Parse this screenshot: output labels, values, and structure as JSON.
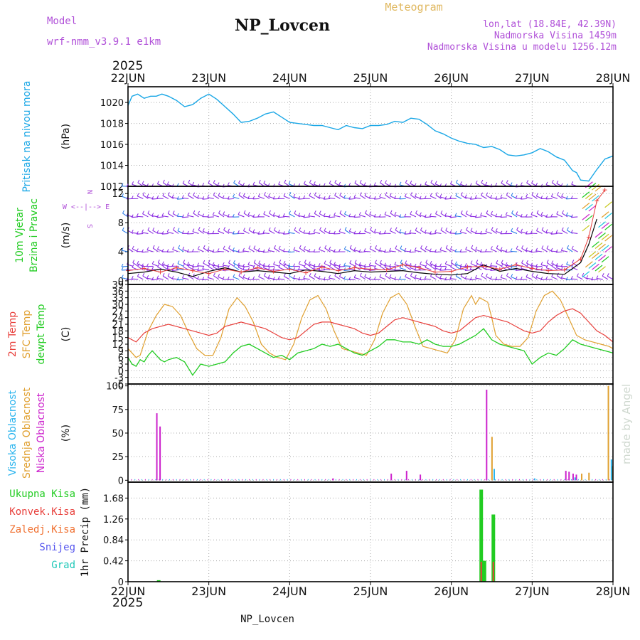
{
  "header": {
    "model_label": "Model",
    "model_name": "wrf-nmm_v3.9.1  e1km",
    "station": "NP_Lovcen",
    "product": "Meteogram",
    "coords": "lon,lat (18.84E, 42.39N)",
    "elevation": "Nadmorska Visina 1459m",
    "model_elevation": "Nadmorska Visina u modelu 1256.12m",
    "year": "2025"
  },
  "footer": {
    "station": "NP_Lovcen",
    "credit": "made by Angel"
  },
  "colors": {
    "pressure": "#1aa7e6",
    "temp2m": "#e8403c",
    "sfc_temp": "#e0a030",
    "dewpt": "#22cc22",
    "cloud_high": "#2ab4ee",
    "cloud_mid": "#e0a030",
    "cloud_low": "#cc22cc",
    "precip_total": "#22cc22",
    "precip_conv": "#e8403c",
    "wind_barb": "#8a2be2",
    "wind_speed": "#000000",
    "wind_gust": "#e8403c"
  },
  "chart_data": {
    "type": "line",
    "x_ticks": [
      "22JUN",
      "23JUN",
      "24JUN",
      "25JUN",
      "26JUN",
      "27JUN",
      "28JUN"
    ],
    "x_unit": "days since 22JUN 2025 00UTC",
    "xlim": [
      0,
      6
    ],
    "panels": [
      {
        "id": "pressure",
        "ylabel_lines": [
          "Pritisak na nivou mora"
        ],
        "unit": "(hPa)",
        "ylim": [
          1012,
          1021.5
        ],
        "yticks": [
          1012,
          1014,
          1016,
          1018,
          1020
        ],
        "series": [
          {
            "x": [
              0,
              0.05,
              0.12,
              0.2,
              0.28,
              0.35,
              0.42,
              0.5,
              0.6,
              0.7,
              0.8,
              0.9,
              1.0,
              1.1,
              1.2,
              1.3,
              1.4,
              1.5,
              1.6,
              1.7,
              1.8,
              1.9,
              2.0,
              2.1,
              2.2,
              2.3,
              2.4,
              2.5,
              2.6,
              2.7,
              2.8,
              2.9,
              3.0,
              3.1,
              3.2,
              3.3,
              3.4,
              3.5,
              3.6,
              3.7,
              3.8,
              3.9,
              4.0,
              4.1,
              4.2,
              4.3,
              4.4,
              4.5,
              4.6,
              4.7,
              4.8,
              4.9,
              5.0,
              5.1,
              5.2,
              5.3,
              5.4,
              5.5,
              5.55,
              5.6,
              5.7,
              5.8,
              5.9,
              6.0
            ],
            "values": [
              1019.7,
              1020.6,
              1020.8,
              1020.4,
              1020.6,
              1020.6,
              1020.8,
              1020.6,
              1020.2,
              1019.6,
              1019.8,
              1020.4,
              1020.8,
              1020.3,
              1019.6,
              1018.9,
              1018.1,
              1018.2,
              1018.5,
              1018.9,
              1019.1,
              1018.6,
              1018.1,
              1018.0,
              1017.9,
              1017.8,
              1017.8,
              1017.6,
              1017.4,
              1017.8,
              1017.6,
              1017.5,
              1017.8,
              1017.8,
              1017.9,
              1018.2,
              1018.1,
              1018.5,
              1018.4,
              1017.9,
              1017.3,
              1017.0,
              1016.6,
              1016.3,
              1016.1,
              1016.0,
              1015.7,
              1015.8,
              1015.5,
              1015.0,
              1014.9,
              1015.0,
              1015.2,
              1015.6,
              1015.3,
              1014.8,
              1014.5,
              1013.5,
              1013.3,
              1012.6,
              1012.5,
              1013.6,
              1014.6,
              1014.9
            ]
          }
        ]
      },
      {
        "id": "wind",
        "ylabel_lines": [
          "10m Vjetar",
          "Brzina i Pravac"
        ],
        "unit": "(m/s)",
        "compass": "W <--|--> E",
        "compass_ns": "N",
        "compass_s": "S",
        "ylim": [
          -0.5,
          13
        ],
        "yticks": [
          0,
          4,
          8,
          12
        ],
        "barb_levels": [
          0.2,
          1.5,
          2.0,
          4.0,
          6.5,
          8.8,
          11.3,
          13.0
        ],
        "series": [
          {
            "name": "speed",
            "x": [
              0,
              0.2,
              0.4,
              0.6,
              0.8,
              1.0,
              1.2,
              1.4,
              1.6,
              1.8,
              2.0,
              2.2,
              2.4,
              2.6,
              2.8,
              3.0,
              3.2,
              3.4,
              3.6,
              3.8,
              4.0,
              4.2,
              4.4,
              4.6,
              4.8,
              5.0,
              5.2,
              5.4,
              5.6,
              5.7,
              5.8
            ],
            "values": [
              1.0,
              1.2,
              1.6,
              1.2,
              0.6,
              1.3,
              1.8,
              1.2,
              1.4,
              1.2,
              1.0,
              1.5,
              1.3,
              1.0,
              1.4,
              1.2,
              1.3,
              1.4,
              1.1,
              0.9,
              0.8,
              1.0,
              2.2,
              1.3,
              1.7,
              1.3,
              1.0,
              0.9,
              2.5,
              5.0,
              8.5
            ]
          },
          {
            "name": "gust",
            "x": [
              0,
              0.2,
              0.4,
              0.6,
              0.8,
              1.0,
              1.2,
              1.4,
              1.6,
              1.8,
              2.0,
              2.2,
              2.4,
              2.6,
              2.8,
              3.0,
              3.2,
              3.4,
              3.6,
              3.8,
              4.0,
              4.2,
              4.4,
              4.6,
              4.8,
              5.0,
              5.2,
              5.4,
              5.6,
              5.7,
              5.8,
              5.9
            ],
            "values": [
              1.4,
              1.7,
              1.2,
              1.8,
              1.4,
              1.0,
              1.6,
              1.2,
              1.8,
              1.3,
              1.6,
              1.1,
              1.9,
              1.4,
              1.8,
              1.6,
              1.5,
              2.2,
              1.8,
              1.2,
              1.3,
              1.9,
              2.0,
              1.6,
              2.2,
              1.7,
              1.4,
              1.5,
              3.0,
              6.0,
              11.0,
              12.5
            ]
          }
        ]
      },
      {
        "id": "temperature",
        "ylabel_lines": [
          "2m Temp",
          "SFC Temp",
          "dewpt Temp"
        ],
        "unit": "(C)",
        "ylim": [
          -6,
          39
        ],
        "yticks": [
          -6,
          -3,
          0,
          3,
          6,
          9,
          12,
          15,
          18,
          21,
          24,
          27,
          30,
          33,
          36,
          39
        ],
        "series": [
          {
            "name": "2m",
            "x": [
              0,
              0.1,
              0.2,
              0.3,
              0.4,
              0.5,
              0.6,
              0.7,
              0.8,
              0.9,
              1.0,
              1.1,
              1.2,
              1.3,
              1.4,
              1.5,
              1.6,
              1.7,
              1.8,
              1.9,
              2.0,
              2.1,
              2.2,
              2.3,
              2.4,
              2.5,
              2.6,
              2.7,
              2.8,
              2.9,
              3.0,
              3.1,
              3.2,
              3.3,
              3.4,
              3.5,
              3.6,
              3.7,
              3.8,
              3.9,
              4.0,
              4.1,
              4.2,
              4.3,
              4.4,
              4.5,
              4.6,
              4.7,
              4.8,
              4.9,
              5.0,
              5.1,
              5.2,
              5.3,
              5.4,
              5.5,
              5.6,
              5.7,
              5.8,
              5.9,
              6.0
            ],
            "values": [
              15,
              13,
              17,
              19,
              20,
              21,
              20,
              19,
              18,
              17,
              16,
              17,
              20,
              21,
              22,
              21,
              20,
              19,
              17,
              15,
              14,
              15,
              18,
              21,
              22,
              22,
              21,
              20,
              19,
              17,
              16,
              17,
              20,
              23,
              24,
              23,
              22,
              21,
              20,
              18,
              17,
              18,
              21,
              24,
              25,
              24,
              23,
              22,
              20,
              18,
              17,
              18,
              22,
              25,
              27,
              28,
              26,
              22,
              18,
              16,
              13
            ]
          },
          {
            "name": "SFC",
            "x": [
              0,
              0.1,
              0.15,
              0.25,
              0.35,
              0.45,
              0.55,
              0.65,
              0.75,
              0.85,
              0.95,
              1.05,
              1.15,
              1.25,
              1.35,
              1.45,
              1.55,
              1.65,
              1.75,
              1.85,
              1.95,
              2.05,
              2.15,
              2.25,
              2.35,
              2.45,
              2.55,
              2.65,
              2.75,
              2.85,
              2.95,
              3.05,
              3.15,
              3.25,
              3.35,
              3.45,
              3.55,
              3.65,
              3.75,
              3.85,
              3.95,
              4.05,
              4.15,
              4.25,
              4.3,
              4.35,
              4.45,
              4.5,
              4.55,
              4.65,
              4.75,
              4.85,
              4.95,
              5.05,
              5.15,
              5.25,
              5.35,
              5.45,
              5.55,
              5.65,
              5.75,
              5.85,
              5.95,
              6.0
            ],
            "values": [
              10,
              6,
              7,
              18,
              25,
              30,
              29,
              25,
              17,
              10,
              7,
              7,
              15,
              28,
              33,
              29,
              22,
              12,
              8,
              6,
              5,
              12,
              24,
              32,
              34,
              28,
              18,
              10,
              9,
              8,
              7,
              14,
              26,
              33,
              35,
              30,
              20,
              11,
              10,
              9,
              8,
              14,
              28,
              34,
              30,
              33,
              31,
              24,
              16,
              12,
              11,
              11,
              15,
              27,
              34,
              36,
              32,
              24,
              16,
              14,
              13,
              12,
              11,
              10
            ]
          },
          {
            "name": "dewpt",
            "x": [
              0,
              0.05,
              0.1,
              0.15,
              0.2,
              0.25,
              0.3,
              0.35,
              0.4,
              0.45,
              0.5,
              0.6,
              0.7,
              0.8,
              0.9,
              1.0,
              1.1,
              1.2,
              1.3,
              1.4,
              1.5,
              1.6,
              1.7,
              1.8,
              1.9,
              2.0,
              2.1,
              2.2,
              2.3,
              2.4,
              2.5,
              2.6,
              2.7,
              2.8,
              2.9,
              3.0,
              3.1,
              3.2,
              3.3,
              3.4,
              3.5,
              3.6,
              3.7,
              3.8,
              3.9,
              4.0,
              4.1,
              4.2,
              4.3,
              4.4,
              4.5,
              4.6,
              4.7,
              4.8,
              4.9,
              5.0,
              5.1,
              5.2,
              5.3,
              5.4,
              5.5,
              5.6,
              5.7,
              5.8,
              5.9,
              6.0
            ],
            "values": [
              6,
              3,
              2,
              5,
              4,
              7,
              9,
              7,
              5,
              4,
              5,
              6,
              4,
              -2,
              3,
              2,
              3,
              4,
              8,
              11,
              12,
              10,
              8,
              6,
              7,
              5,
              8,
              9,
              10,
              12,
              11,
              12,
              10,
              8,
              7,
              9,
              11,
              14,
              14,
              13,
              13,
              12,
              14,
              12,
              11,
              11,
              12,
              14,
              16,
              19,
              14,
              12,
              11,
              10,
              9,
              3,
              6,
              8,
              7,
              10,
              14,
              12,
              11,
              10,
              9,
              8
            ]
          }
        ]
      },
      {
        "id": "clouds",
        "ylabel_lines": [
          "Visoka Oblacnost",
          "Srednja Oblacnost",
          "Niska Oblacnost"
        ],
        "unit": "(%)",
        "ylim": [
          -2,
          102
        ],
        "yticks": [
          0,
          25,
          50,
          75,
          100
        ],
        "series": [
          {
            "name": "low",
            "x": [
              0.37,
              0.41,
              2.55,
              3.27,
              3.46,
              3.63,
              4.45,
              5.43,
              5.47,
              5.52,
              5.56
            ],
            "values": [
              71,
              57,
              2,
              7,
              10,
              6,
              96,
              10,
              9,
              7,
              6
            ]
          },
          {
            "name": "mid",
            "x": [
              4.49,
              5.6,
              5.69,
              5.93,
              5.98
            ],
            "values": [
              46,
              7,
              8,
              100,
              15
            ]
          },
          {
            "name": "high",
            "x": [
              4.5,
              5.0,
              5.5,
              5.95
            ],
            "values": [
              12,
              2,
              3,
              22
            ]
          }
        ]
      },
      {
        "id": "precip",
        "ylabel_lines": [
          "Ukupna  Kisa",
          "Konvek.Kisa",
          "Zaledj.Kisa",
          "Snijeg",
          "Grad"
        ],
        "label_colors": [
          "#22cc22",
          "#e8403c",
          "#f07030",
          "#5555ee",
          "#20c8b8"
        ],
        "unit": "1hr Precip (mm)",
        "ylim": [
          0,
          2.0
        ],
        "yticks": [
          0,
          0.42,
          0.84,
          1.26,
          1.68
        ],
        "series": [
          {
            "name": "total",
            "x": [
              0.38,
              4.37,
              4.41,
              4.52
            ],
            "values": [
              0.03,
              1.85,
              0.42,
              1.35
            ]
          },
          {
            "name": "conv",
            "x": [
              4.37,
              4.52
            ],
            "values": [
              0.4,
              0.4
            ]
          }
        ]
      }
    ]
  }
}
